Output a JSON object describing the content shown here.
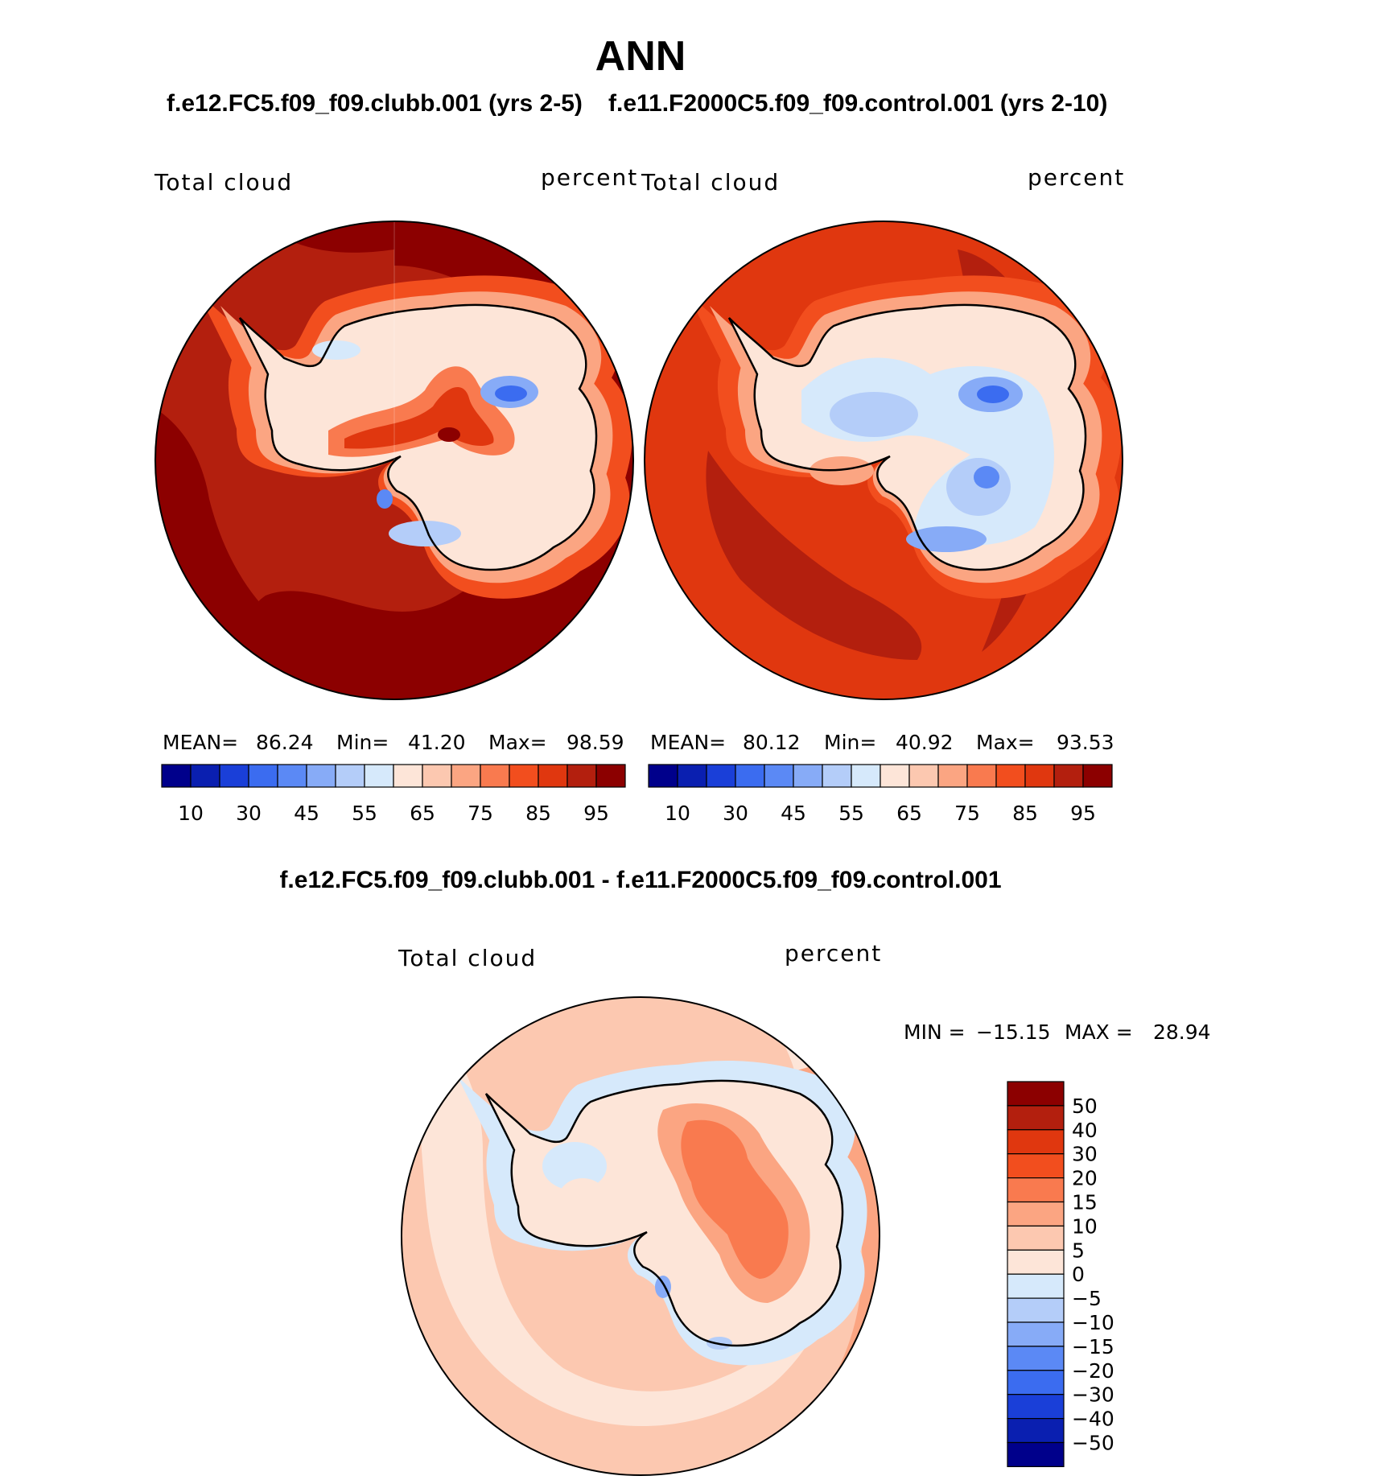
{
  "figure": {
    "title": "ANN",
    "panel_left_title": "f.e12.FC5.f09_f09.clubb.001 (yrs 2-5)",
    "panel_right_title": "f.e11.F2000C5.f09_f09.control.001 (yrs 2-10)",
    "diff_title": "f.e12.FC5.f09_f09.clubb.001 - f.e11.F2000C5.f09_f09.control.001"
  },
  "panels": [
    {
      "variable": "Total cloud",
      "units": "percent",
      "stats": {
        "mean_label": "MEAN=",
        "mean": "86.24",
        "min_label": "Min=",
        "min": "41.20",
        "max_label": "Max=",
        "max": "98.59"
      },
      "ocean_color": "#b31f0e",
      "outer_color": "#8c0000",
      "interior_color": "#fcd5c0"
    },
    {
      "variable": "Total cloud",
      "units": "percent",
      "stats": {
        "mean_label": "MEAN=",
        "mean": "80.12",
        "min_label": "Min=",
        "min": "40.92",
        "max_label": "Max=",
        "max": "93.53"
      },
      "ocean_color": "#e0370f",
      "outer_color": "#b31f0e",
      "interior_color": "#d6e9fb"
    }
  ],
  "abs_colorbar": {
    "colors": [
      "#00008b",
      "#0a1fb0",
      "#1a3fd8",
      "#3b6cf0",
      "#5b89f5",
      "#87abf7",
      "#b4cdf9",
      "#d6e9fb",
      "#fde5d8",
      "#fcc8b0",
      "#fba582",
      "#f97a4f",
      "#f24e1e",
      "#e0370f",
      "#b31f0e",
      "#8c0000"
    ],
    "tick_labels": [
      "10",
      "30",
      "45",
      "55",
      "65",
      "75",
      "85",
      "95"
    ]
  },
  "diff_panel": {
    "variable": "Total cloud",
    "units": "percent",
    "min_label": "MIN =",
    "min": "−15.15",
    "max_label": "MAX =",
    "max": "28.94",
    "base_color": "#fcc8b0",
    "colors": [
      "#8c0000",
      "#b31f0e",
      "#e0370f",
      "#f24e1e",
      "#f97a4f",
      "#fba582",
      "#fcc8b0",
      "#fde5d8",
      "#d6e9fb",
      "#b4cdf9",
      "#87abf7",
      "#5b89f5",
      "#3b6cf0",
      "#1a3fd8",
      "#0a1fb0",
      "#00008b"
    ],
    "tick_labels": [
      "50",
      "40",
      "30",
      "20",
      "15",
      "10",
      "5",
      "0",
      "−5",
      "−10",
      "−15",
      "−20",
      "−30",
      "−40",
      "−50"
    ]
  }
}
